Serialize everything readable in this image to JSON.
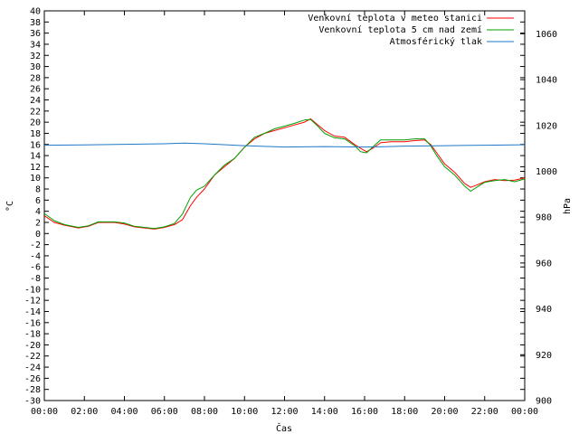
{
  "chart_data": {
    "type": "line",
    "xlabel": "Čas",
    "ylabel_left": "°C",
    "ylabel_right": "hPa",
    "ylim_left": [
      -30,
      40
    ],
    "ylim_right": [
      900,
      1070
    ],
    "left_ticks": [
      40,
      38,
      36,
      34,
      32,
      30,
      28,
      26,
      24,
      22,
      20,
      18,
      16,
      14,
      12,
      10,
      8,
      6,
      4,
      2,
      0,
      -2,
      -4,
      -6,
      -8,
      -10,
      -12,
      -14,
      -16,
      -18,
      -20,
      -22,
      -24,
      -26,
      -28,
      -30
    ],
    "right_ticks": [
      1060,
      1040,
      1020,
      1000,
      980,
      960,
      940,
      920,
      900
    ],
    "x_ticks": [
      "00:00",
      "02:00",
      "04:00",
      "06:00",
      "08:00",
      "10:00",
      "12:00",
      "14:00",
      "16:00",
      "18:00",
      "20:00",
      "22:00",
      "00:00"
    ],
    "grid": false,
    "legend": "top-right",
    "series": [
      {
        "name": "Venkovní teplota v meteo stanici",
        "color": "#ff0000",
        "axis": "left",
        "points": [
          [
            0,
            3.2
          ],
          [
            0.5,
            2.0
          ],
          [
            1,
            1.5
          ],
          [
            1.7,
            1.0
          ],
          [
            2.2,
            1.3
          ],
          [
            2.7,
            2.0
          ],
          [
            3.5,
            2.0
          ],
          [
            4.0,
            1.7
          ],
          [
            4.5,
            1.2
          ],
          [
            5.0,
            1.0
          ],
          [
            5.5,
            0.8
          ],
          [
            6.0,
            1.1
          ],
          [
            6.5,
            1.6
          ],
          [
            6.9,
            2.5
          ],
          [
            7.3,
            5.0
          ],
          [
            7.6,
            6.5
          ],
          [
            8.0,
            8.0
          ],
          [
            8.5,
            10.5
          ],
          [
            9.0,
            12.0
          ],
          [
            9.5,
            13.5
          ],
          [
            10.0,
            15.5
          ],
          [
            10.5,
            17.0
          ],
          [
            11.0,
            18.0
          ],
          [
            11.5,
            18.5
          ],
          [
            12.0,
            19.0
          ],
          [
            12.5,
            19.5
          ],
          [
            13.0,
            20.0
          ],
          [
            13.3,
            20.6
          ],
          [
            13.6,
            19.7
          ],
          [
            14.0,
            18.5
          ],
          [
            14.5,
            17.5
          ],
          [
            15.0,
            17.3
          ],
          [
            15.5,
            16.0
          ],
          [
            15.8,
            15.3
          ],
          [
            16.1,
            14.7
          ],
          [
            16.4,
            15.3
          ],
          [
            16.8,
            16.3
          ],
          [
            17.3,
            16.5
          ],
          [
            18.0,
            16.5
          ],
          [
            18.5,
            16.7
          ],
          [
            19.0,
            16.8
          ],
          [
            19.3,
            16.0
          ],
          [
            19.6,
            14.5
          ],
          [
            20.0,
            12.5
          ],
          [
            20.5,
            11.0
          ],
          [
            21.0,
            9.0
          ],
          [
            21.3,
            8.3
          ],
          [
            21.6,
            8.7
          ],
          [
            22.0,
            9.3
          ],
          [
            22.5,
            9.7
          ],
          [
            23.0,
            9.5
          ],
          [
            23.5,
            9.6
          ],
          [
            24.0,
            10.0
          ]
        ]
      },
      {
        "name": "Venkovní teplota 5 cm nad zemí",
        "color": "#00a000",
        "axis": "left",
        "points": [
          [
            0,
            3.6
          ],
          [
            0.5,
            2.3
          ],
          [
            1,
            1.6
          ],
          [
            1.7,
            1.1
          ],
          [
            2.2,
            1.4
          ],
          [
            2.7,
            2.1
          ],
          [
            3.5,
            2.1
          ],
          [
            4.0,
            1.9
          ],
          [
            4.5,
            1.3
          ],
          [
            5.0,
            1.1
          ],
          [
            5.5,
            0.9
          ],
          [
            6.0,
            1.2
          ],
          [
            6.5,
            1.8
          ],
          [
            6.9,
            3.5
          ],
          [
            7.3,
            6.5
          ],
          [
            7.6,
            7.8
          ],
          [
            8.0,
            8.5
          ],
          [
            8.5,
            10.5
          ],
          [
            9.0,
            12.3
          ],
          [
            9.5,
            13.5
          ],
          [
            10.0,
            15.5
          ],
          [
            10.5,
            17.3
          ],
          [
            11.0,
            18.0
          ],
          [
            11.5,
            18.8
          ],
          [
            12.0,
            19.3
          ],
          [
            12.5,
            19.8
          ],
          [
            13.0,
            20.4
          ],
          [
            13.3,
            20.5
          ],
          [
            13.6,
            19.5
          ],
          [
            14.0,
            18.0
          ],
          [
            14.5,
            17.2
          ],
          [
            15.0,
            17.0
          ],
          [
            15.5,
            15.8
          ],
          [
            15.8,
            14.7
          ],
          [
            16.1,
            14.5
          ],
          [
            16.4,
            15.5
          ],
          [
            16.8,
            16.8
          ],
          [
            17.3,
            16.8
          ],
          [
            18.0,
            16.8
          ],
          [
            18.5,
            17.0
          ],
          [
            19.0,
            17.0
          ],
          [
            19.3,
            15.8
          ],
          [
            19.6,
            14.0
          ],
          [
            20.0,
            12.0
          ],
          [
            20.5,
            10.5
          ],
          [
            21.0,
            8.5
          ],
          [
            21.3,
            7.6
          ],
          [
            21.6,
            8.3
          ],
          [
            22.0,
            9.2
          ],
          [
            22.5,
            9.5
          ],
          [
            23.0,
            9.7
          ],
          [
            23.5,
            9.3
          ],
          [
            24.0,
            9.8
          ]
        ]
      },
      {
        "name": "Atmosférický tlak",
        "color": "#1f78c8",
        "axis": "right",
        "points": [
          [
            0,
            1011.4
          ],
          [
            2,
            1011.5
          ],
          [
            4,
            1011.8
          ],
          [
            6,
            1012.0
          ],
          [
            7,
            1012.3
          ],
          [
            8,
            1012.0
          ],
          [
            10,
            1011.2
          ],
          [
            12,
            1010.6
          ],
          [
            14,
            1010.8
          ],
          [
            16,
            1010.6
          ],
          [
            17,
            1010.7
          ],
          [
            18,
            1011.0
          ],
          [
            20,
            1011.2
          ],
          [
            22,
            1011.4
          ],
          [
            24,
            1011.6
          ]
        ]
      }
    ]
  }
}
